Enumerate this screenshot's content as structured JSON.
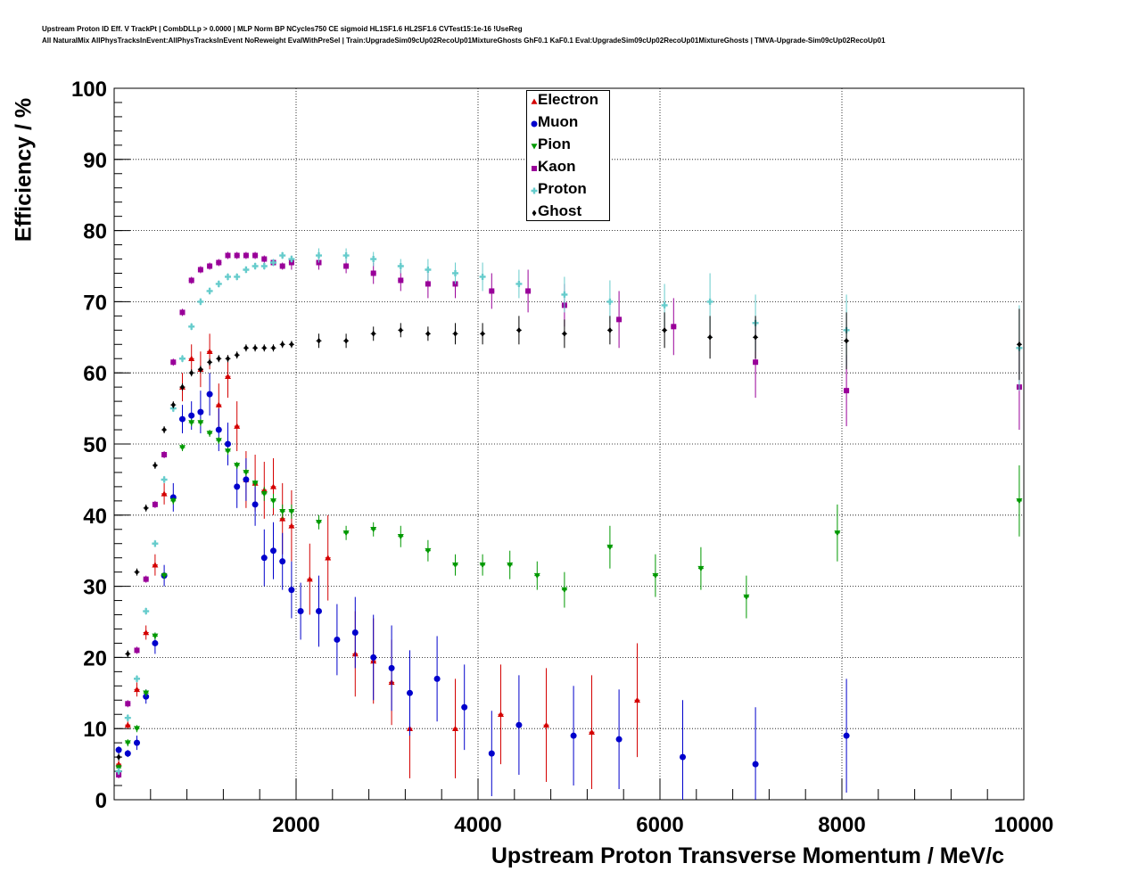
{
  "chart_data": {
    "type": "scatter",
    "title_lines": [
      "Upstream Proton ID Eff. V TrackPt | CombDLLp > 0.0000 | MLP Norm BP NCycles750 CE sigmoid HL1SF1.6 HL2SF1.6 CVTest15:1e-16 !UseReg",
      "All NaturalMix AllPhysTracksInEvent:AllPhysTracksInEvent NoReweight EvalWithPreSel | Train:UpgradeSim09cUp02RecoUp01MixtureGhosts GhF0.1 KaF0.1 Eval:UpgradeSim09cUp02RecoUp01MixtureGhosts | TMVA-Upgrade-Sim09cUp02RecoUp01"
    ],
    "xlabel": "Upstream Proton Transverse Momentum / MeV/c",
    "ylabel": "Efficiency / %",
    "xlim": [
      0,
      10000
    ],
    "ylim": [
      0,
      100
    ],
    "xticks": [
      2000,
      4000,
      6000,
      8000,
      10000
    ],
    "yticks": [
      0,
      10,
      20,
      30,
      40,
      50,
      60,
      70,
      80,
      90,
      100
    ],
    "grid": true,
    "legend_position": "top-center",
    "series": [
      {
        "name": "Electron",
        "color": "#d40000",
        "marker": "triangle-up",
        "errors": [
          0.5,
          0.5,
          1,
          1,
          1.5,
          1.5,
          2,
          2,
          2.5,
          2.5,
          3,
          3,
          3.5,
          4,
          4,
          4,
          4,
          5,
          5,
          5,
          6,
          6,
          6,
          6,
          7,
          7,
          7,
          8,
          8,
          8
        ],
        "x": [
          50,
          150,
          250,
          350,
          450,
          550,
          750,
          850,
          950,
          1050,
          1150,
          1250,
          1350,
          1450,
          1550,
          1650,
          1750,
          1850,
          1950,
          2150,
          2350,
          2650,
          2850,
          3050,
          3250,
          3750,
          4250,
          4750,
          5250,
          5750
        ],
        "y": [
          5,
          10.5,
          15.5,
          23.5,
          33,
          43,
          58,
          62,
          60.5,
          63,
          55.5,
          59.5,
          52.5,
          45,
          44.5,
          43.5,
          44,
          39.5,
          38.5,
          31,
          34,
          20.5,
          19.5,
          16.5,
          10,
          10,
          12,
          10.5,
          9.5,
          14
        ]
      },
      {
        "name": "Muon",
        "color": "#0000cc",
        "marker": "circle",
        "errors": [
          0.5,
          0.5,
          1,
          1,
          1.5,
          1.5,
          2,
          2,
          2,
          3,
          3,
          3,
          3,
          3,
          3,
          3,
          4,
          4,
          4,
          4,
          4,
          5,
          5,
          5,
          6,
          6,
          6,
          6,
          6,
          6,
          7,
          7,
          7,
          8,
          8,
          8
        ],
        "x": [
          50,
          150,
          250,
          350,
          450,
          550,
          650,
          750,
          850,
          950,
          1050,
          1150,
          1250,
          1350,
          1450,
          1550,
          1650,
          1750,
          1850,
          1950,
          2050,
          2250,
          2450,
          2650,
          2850,
          3050,
          3250,
          3550,
          3850,
          4150,
          4450,
          5050,
          5550,
          6250,
          7050,
          8050
        ],
        "y": [
          7,
          6.5,
          8,
          14.5,
          22,
          31.5,
          42.5,
          53.5,
          54,
          54.5,
          57,
          52,
          50,
          44,
          45,
          41.5,
          34,
          35,
          33.5,
          29.5,
          26.5,
          26.5,
          22.5,
          23.5,
          20,
          18.5,
          15,
          17,
          13,
          6.5,
          10.5,
          9,
          8.5,
          6,
          5,
          9
        ]
      },
      {
        "name": "Pion",
        "color": "#009900",
        "marker": "triangle-down",
        "errors": [
          0.5,
          0.5,
          0.5,
          0.5,
          0.5,
          0.5,
          0.5,
          0.5,
          0.5,
          0.5,
          0.5,
          0.5,
          0.5,
          0.5,
          0.5,
          0.5,
          1,
          1,
          1,
          1,
          1,
          1,
          1,
          1.5,
          1.5,
          1.5,
          1.5,
          2,
          2,
          2.5,
          3,
          3,
          3,
          3,
          4,
          5
        ],
        "x": [
          50,
          150,
          250,
          350,
          450,
          550,
          650,
          750,
          850,
          950,
          1050,
          1150,
          1250,
          1350,
          1450,
          1550,
          1650,
          1750,
          1850,
          1950,
          2250,
          2550,
          2850,
          3150,
          3450,
          3750,
          4050,
          4350,
          4650,
          4950,
          5450,
          5950,
          6450,
          6950,
          7950,
          9950
        ],
        "y": [
          4.5,
          8,
          10,
          15,
          23,
          31.5,
          42,
          49.5,
          53,
          53,
          51.5,
          50.5,
          49,
          47,
          46,
          44.5,
          43,
          42,
          40.5,
          40.5,
          39,
          37.5,
          38,
          37,
          35,
          33,
          33,
          33,
          31.5,
          29.5,
          35.5,
          31.5,
          32.5,
          28.5,
          37.5,
          42
        ]
      },
      {
        "name": "Kaon",
        "color": "#990099",
        "marker": "square",
        "errors": [
          0.5,
          0.5,
          0.5,
          0.5,
          0.5,
          0.5,
          0.5,
          0.5,
          0.5,
          0.5,
          0.5,
          0.5,
          0.5,
          0.5,
          0.5,
          0.5,
          0.5,
          0.5,
          0.5,
          1,
          1,
          1,
          1.5,
          1.5,
          2,
          2,
          2.5,
          3,
          3,
          4,
          4,
          5,
          5,
          6
        ],
        "x": [
          50,
          150,
          250,
          350,
          450,
          550,
          650,
          750,
          850,
          950,
          1050,
          1150,
          1250,
          1350,
          1450,
          1550,
          1650,
          1750,
          1850,
          1950,
          2250,
          2550,
          2850,
          3150,
          3450,
          3750,
          4150,
          4550,
          4950,
          5550,
          6150,
          7050,
          8050,
          9950
        ],
        "y": [
          3.5,
          13.5,
          21,
          31,
          41.5,
          48.5,
          61.5,
          68.5,
          73,
          74.5,
          75,
          75.5,
          76.5,
          76.5,
          76.5,
          76.5,
          76,
          75.5,
          75,
          75.5,
          75.5,
          75,
          74,
          73,
          72.5,
          72.5,
          71.5,
          71.5,
          69.5,
          67.5,
          66.5,
          61.5,
          57.5,
          58
        ]
      },
      {
        "name": "Proton",
        "color": "#66cccc",
        "marker": "cross",
        "errors": [
          0.5,
          0.5,
          0.5,
          0.5,
          0.5,
          0.5,
          0.5,
          0.5,
          0.5,
          0.5,
          0.5,
          0.5,
          0.5,
          0.5,
          0.5,
          0.5,
          0.5,
          0.5,
          0.5,
          0.5,
          1,
          1,
          1,
          1,
          1.5,
          1.5,
          2,
          2,
          2.5,
          3,
          3,
          4,
          4,
          5,
          6
        ],
        "x": [
          50,
          150,
          250,
          350,
          450,
          550,
          650,
          750,
          850,
          950,
          1050,
          1150,
          1250,
          1350,
          1450,
          1550,
          1650,
          1750,
          1850,
          1950,
          2250,
          2550,
          2850,
          3150,
          3450,
          3750,
          4050,
          4450,
          4950,
          5450,
          6050,
          6550,
          7050,
          8050,
          9950
        ],
        "y": [
          4,
          11.5,
          17,
          26.5,
          36,
          45,
          55,
          62,
          66.5,
          70,
          71.5,
          72.5,
          73.5,
          73.5,
          74.5,
          75,
          75,
          75.5,
          76.5,
          76,
          76.5,
          76.5,
          76,
          75,
          74.5,
          74,
          73.5,
          72.5,
          71,
          70,
          69.5,
          70,
          67,
          66,
          63.5
        ]
      },
      {
        "name": "Ghost",
        "color": "#000000",
        "marker": "diamond",
        "errors": [
          0.5,
          0.5,
          0.5,
          0.5,
          0.5,
          0.5,
          0.5,
          0.5,
          0.5,
          0.5,
          0.5,
          0.5,
          0.5,
          0.5,
          0.5,
          0.5,
          0.5,
          0.5,
          0.5,
          0.5,
          1,
          1,
          1,
          1,
          1,
          1.5,
          1.5,
          2,
          2,
          2,
          2.5,
          3,
          3,
          4,
          5
        ],
        "x": [
          50,
          150,
          250,
          350,
          450,
          550,
          650,
          750,
          850,
          950,
          1050,
          1150,
          1250,
          1350,
          1450,
          1550,
          1650,
          1750,
          1850,
          1950,
          2250,
          2550,
          2850,
          3150,
          3450,
          3750,
          4050,
          4450,
          4950,
          5450,
          6050,
          6550,
          7050,
          8050,
          9950
        ],
        "y": [
          6,
          20.5,
          32,
          41,
          47,
          52,
          55.5,
          58,
          60,
          60.5,
          61.5,
          62,
          62,
          62.5,
          63.5,
          63.5,
          63.5,
          63.5,
          64,
          64,
          64.5,
          64.5,
          65.5,
          66,
          65.5,
          65.5,
          65.5,
          66,
          65.5,
          66,
          66,
          65,
          65,
          64.5,
          64
        ]
      }
    ]
  }
}
